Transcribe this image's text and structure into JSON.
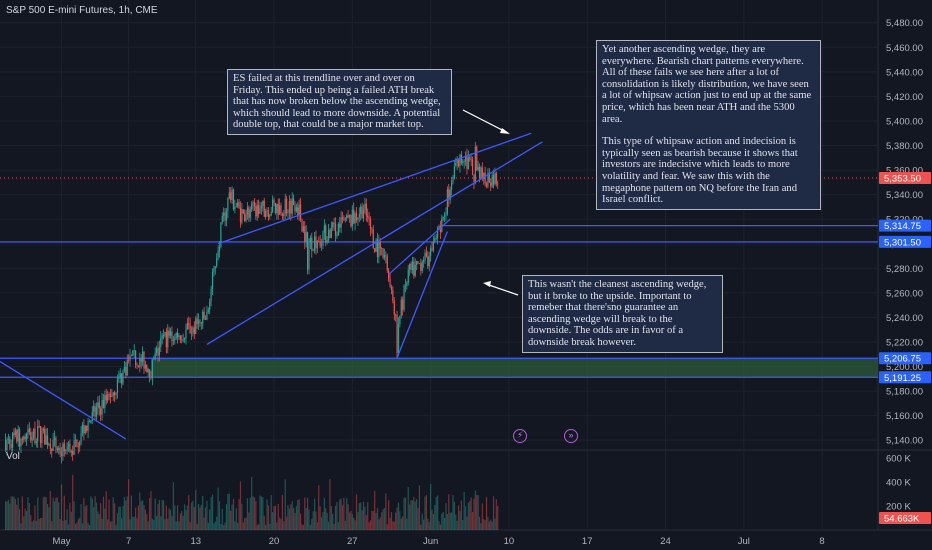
{
  "header": {
    "title": "S&P 500 E-mini Futures, 1h, CME"
  },
  "volume_pane": {
    "label": "Vol",
    "current_value": "54.663K"
  },
  "annotations": {
    "top_left": "ES failed at this trendline over and over on Friday. This ended up being a failed ATH break that has now broken below the ascending wedge, which should lead to more downside. A potential double top, that could be a major market top.",
    "top_right_p1": "Yet another ascending wedge, they are everywhere. Bearish chart patterns everywhere. All of these fails we see here after a lot of consolidation is likely distribution, we have seen a lot of whipsaw action just to end up at the same price, which has been near ATH and the 5300 area.",
    "top_right_p2": "This type of whipsaw action and indecision is typically seen as bearish because it shows that investors are indecisive which leads to more volatility and fear. We saw this with the megaphone pattern on NQ before the Iran and Israel conflict.",
    "bottom_right": "This wasn't the cleanest ascending wedge, but it broke to the upside. Important to remeber that there'sno guarantee an ascending wedge will break to the downside. The odds are in favor of a downside break however."
  },
  "colors": {
    "background": "#131722",
    "up": "#26a69a",
    "down": "#ef5350",
    "trendline": "#3d5afe",
    "zone": "#2e5b3a",
    "grid": "#1e222d"
  },
  "icons": [
    "lightning-event-icon",
    "forward-event-icon"
  ],
  "chart_data": {
    "type": "candlestick",
    "title": "S&P 500 E-mini Futures, 1h, CME",
    "y_ticks": [
      5140,
      5160,
      5180,
      5200,
      5220,
      5240,
      5260,
      5280,
      5300,
      5320,
      5340,
      5360,
      5380,
      5400,
      5420,
      5440,
      5460,
      5480
    ],
    "y_tick_labels": [
      "5,140.00",
      "5,160.00",
      "5,180.00",
      "5,200.00",
      "5,220.00",
      "5,240.00",
      "5,260.00",
      "5,280.00",
      "5,300.00",
      "5,320.00",
      "5,340.00",
      "5,360.00",
      "5,380.00",
      "5,400.00",
      "5,420.00",
      "5,440.00",
      "5,460.00",
      "5,480.00"
    ],
    "ylim": [
      5132,
      5492
    ],
    "x_ticks": [
      "May",
      "7",
      "13",
      "20",
      "27",
      "Jun",
      "10",
      "17",
      "24",
      "Jul",
      "8"
    ],
    "x_tick_dates": [
      "2024-05-01",
      "2024-05-07",
      "2024-05-13",
      "2024-05-20",
      "2024-05-27",
      "2024-06-03",
      "2024-06-10",
      "2024-06-17",
      "2024-06-24",
      "2024-07-01",
      "2024-07-08"
    ],
    "xlim": [
      "2024-04-25T12:00",
      "2024-07-13T00:00"
    ],
    "price_labels": [
      {
        "value": 5353.5,
        "text": "5,353.50",
        "color": "#ef5350",
        "dotted": true
      },
      {
        "value": 5314.75,
        "text": "5,314.75",
        "color": "#2962ff"
      },
      {
        "value": 5301.5,
        "text": "5,301.50",
        "color": "#2962ff"
      },
      {
        "value": 5206.75,
        "text": "5,206.75",
        "color": "#2962ff"
      },
      {
        "value": 5191.25,
        "text": "5,191.25",
        "color": "#2962ff"
      }
    ],
    "zone": {
      "from": "2024-05-09",
      "to": "2024-07-13",
      "low": 5191.25,
      "high": 5206.75
    },
    "trendlines": [
      {
        "name": "falling-line",
        "from": [
          "2024-04-25T12:00",
          5204
        ],
        "to": [
          "2024-05-06T18:00",
          5141
        ]
      },
      {
        "name": "wedge-upper",
        "from": [
          "2024-05-15",
          5300
        ],
        "to": [
          "2024-06-12",
          5390
        ]
      },
      {
        "name": "wedge-lower",
        "from": [
          "2024-05-14",
          5218
        ],
        "to": [
          "2024-06-13",
          5383
        ]
      },
      {
        "name": "small-wedge-upper",
        "from": [
          "2024-05-30T06:00",
          5275
        ],
        "to": [
          "2024-06-04T18:00",
          5320
        ]
      },
      {
        "name": "small-wedge-lower",
        "from": [
          "2024-05-31",
          5207
        ],
        "to": [
          "2024-06-04T12:00",
          5310
        ]
      }
    ],
    "price_path": [
      [
        "2024-04-26",
        5140
      ],
      [
        "2024-04-29",
        5145
      ],
      [
        "2024-04-30",
        5140
      ],
      [
        "2024-05-01",
        5130
      ],
      [
        "2024-05-02",
        5135
      ],
      [
        "2024-05-03",
        5150
      ],
      [
        "2024-05-06",
        5185
      ],
      [
        "2024-05-07",
        5205
      ],
      [
        "2024-05-08",
        5207
      ],
      [
        "2024-05-09",
        5198
      ],
      [
        "2024-05-10",
        5222
      ],
      [
        "2024-05-13",
        5232
      ],
      [
        "2024-05-14",
        5240
      ],
      [
        "2024-05-15",
        5300
      ],
      [
        "2024-05-16",
        5340
      ],
      [
        "2024-05-17",
        5325
      ],
      [
        "2024-05-20",
        5330
      ],
      [
        "2024-05-21",
        5330
      ],
      [
        "2024-05-22",
        5335
      ],
      [
        "2024-05-23",
        5300
      ],
      [
        "2024-05-24",
        5305
      ],
      [
        "2024-05-27",
        5320
      ],
      [
        "2024-05-28",
        5330
      ],
      [
        "2024-05-29",
        5300
      ],
      [
        "2024-05-30",
        5285
      ],
      [
        "2024-05-31",
        5230
      ],
      [
        "2024-06-01",
        5275
      ],
      [
        "2024-06-03",
        5290
      ],
      [
        "2024-06-04",
        5315
      ],
      [
        "2024-06-05",
        5360
      ],
      [
        "2024-06-06",
        5372
      ],
      [
        "2024-06-07",
        5355
      ],
      [
        "2024-06-09",
        5353.5
      ]
    ],
    "price_extremes": [
      [
        "2024-05-23",
        5275
      ],
      [
        "2024-05-31",
        5207
      ],
      [
        "2024-06-07",
        5383
      ]
    ],
    "volume_axis": {
      "ticks": [
        200000,
        400000,
        600000
      ],
      "labels": [
        "200 K",
        "400 K",
        "600 K"
      ],
      "max": 650000
    },
    "volume_last": "54.663K"
  }
}
